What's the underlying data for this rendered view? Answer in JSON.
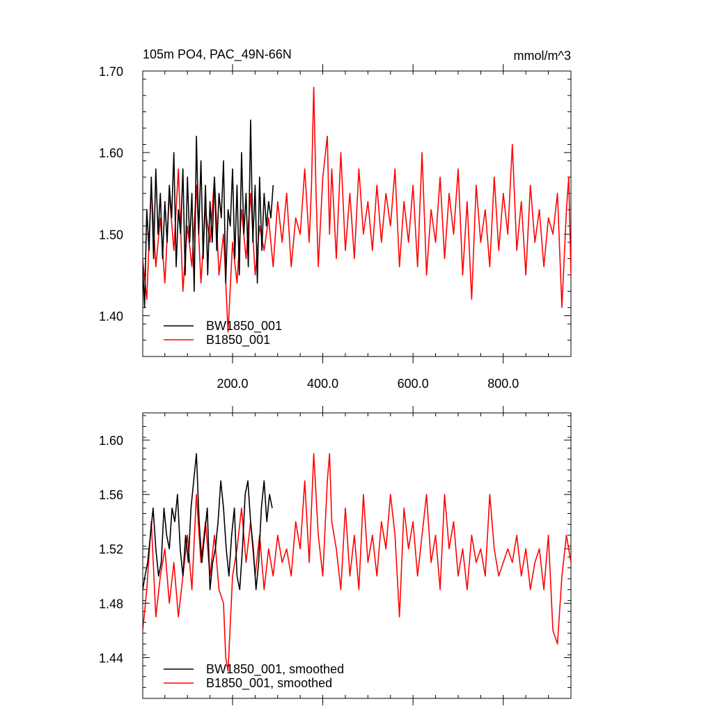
{
  "figure": {
    "title_left": "105m PO4, PAC_49N-66N",
    "title_right": "mmol/m^3"
  },
  "chart_data": [
    {
      "type": "line",
      "title": "105m PO4, PAC_49N-66N",
      "unit_label": "mmol/m^3",
      "xlabel": "",
      "ylabel": "",
      "xlim": [
        1,
        950
      ],
      "ylim": [
        1.35,
        1.7
      ],
      "x_ticks": [
        200,
        400,
        600,
        800
      ],
      "x_tick_labels": [
        "200.0",
        "400.0",
        "600.0",
        "800.0"
      ],
      "y_ticks": [
        1.4,
        1.5,
        1.6,
        1.7
      ],
      "y_tick_labels": [
        "1.40",
        "1.50",
        "1.60",
        "1.70"
      ],
      "grid": false,
      "legend_position": "bottom-left",
      "series": [
        {
          "name": "BW1850_001",
          "color": "#000000",
          "x": [
            1,
            5,
            10,
            15,
            20,
            25,
            30,
            35,
            40,
            45,
            50,
            55,
            60,
            65,
            70,
            75,
            80,
            85,
            90,
            95,
            100,
            105,
            110,
            115,
            120,
            125,
            130,
            135,
            140,
            145,
            150,
            155,
            160,
            165,
            170,
            175,
            180,
            185,
            190,
            195,
            200,
            205,
            210,
            215,
            220,
            225,
            230,
            235,
            240,
            245,
            250,
            255,
            260,
            265,
            270,
            275,
            280,
            285,
            290
          ],
          "values": [
            1.46,
            1.41,
            1.53,
            1.48,
            1.57,
            1.47,
            1.58,
            1.5,
            1.55,
            1.47,
            1.54,
            1.49,
            1.56,
            1.52,
            1.6,
            1.46,
            1.53,
            1.5,
            1.58,
            1.45,
            1.57,
            1.49,
            1.55,
            1.43,
            1.62,
            1.5,
            1.59,
            1.47,
            1.56,
            1.45,
            1.54,
            1.49,
            1.57,
            1.48,
            1.55,
            1.52,
            1.59,
            1.44,
            1.53,
            1.51,
            1.58,
            1.47,
            1.56,
            1.45,
            1.6,
            1.5,
            1.55,
            1.46,
            1.64,
            1.49,
            1.56,
            1.44,
            1.57,
            1.48,
            1.55,
            1.51,
            1.54,
            1.52,
            1.56
          ]
        },
        {
          "name": "B1850_001",
          "color": "#ff0000",
          "x": [
            1,
            10,
            20,
            30,
            40,
            50,
            60,
            70,
            80,
            90,
            100,
            110,
            120,
            130,
            140,
            150,
            160,
            170,
            180,
            190,
            200,
            210,
            220,
            230,
            240,
            250,
            260,
            270,
            280,
            290,
            300,
            310,
            320,
            330,
            340,
            350,
            360,
            370,
            375,
            380,
            385,
            390,
            400,
            410,
            415,
            420,
            430,
            440,
            450,
            460,
            470,
            480,
            490,
            500,
            510,
            520,
            530,
            540,
            550,
            560,
            570,
            580,
            590,
            600,
            610,
            620,
            630,
            640,
            650,
            660,
            670,
            680,
            690,
            700,
            710,
            720,
            730,
            740,
            750,
            760,
            770,
            780,
            790,
            800,
            810,
            820,
            830,
            840,
            850,
            860,
            870,
            880,
            890,
            900,
            910,
            920,
            930,
            940,
            945,
            950
          ],
          "values": [
            1.47,
            1.42,
            1.56,
            1.46,
            1.52,
            1.44,
            1.55,
            1.48,
            1.58,
            1.43,
            1.51,
            1.46,
            1.56,
            1.44,
            1.53,
            1.49,
            1.57,
            1.45,
            1.5,
            1.38,
            1.49,
            1.44,
            1.53,
            1.47,
            1.55,
            1.45,
            1.51,
            1.48,
            1.52,
            1.46,
            1.54,
            1.49,
            1.55,
            1.46,
            1.52,
            1.5,
            1.58,
            1.49,
            1.56,
            1.68,
            1.55,
            1.46,
            1.57,
            1.62,
            1.5,
            1.58,
            1.47,
            1.6,
            1.48,
            1.55,
            1.47,
            1.58,
            1.5,
            1.54,
            1.48,
            1.56,
            1.49,
            1.55,
            1.51,
            1.58,
            1.46,
            1.54,
            1.49,
            1.56,
            1.46,
            1.6,
            1.45,
            1.53,
            1.49,
            1.57,
            1.47,
            1.55,
            1.5,
            1.58,
            1.45,
            1.54,
            1.42,
            1.56,
            1.49,
            1.53,
            1.46,
            1.57,
            1.48,
            1.55,
            1.5,
            1.61,
            1.48,
            1.54,
            1.45,
            1.56,
            1.49,
            1.53,
            1.46,
            1.52,
            1.5,
            1.55,
            1.41,
            1.53,
            1.57,
            1.45
          ]
        }
      ]
    },
    {
      "type": "line",
      "title": "",
      "xlabel": "",
      "ylabel": "",
      "xlim": [
        1,
        950
      ],
      "ylim": [
        1.41,
        1.62
      ],
      "x_ticks": [
        200,
        400,
        600,
        800
      ],
      "x_tick_labels": [],
      "y_ticks": [
        1.44,
        1.48,
        1.52,
        1.56,
        1.6
      ],
      "y_tick_labels": [
        "1.44",
        "1.48",
        "1.52",
        "1.56",
        "1.60"
      ],
      "grid": false,
      "legend_position": "bottom-left",
      "series": [
        {
          "name": "BW1850_001, smoothed",
          "color": "#000000",
          "x": [
            1,
            6,
            12,
            18,
            24,
            30,
            36,
            42,
            48,
            54,
            60,
            66,
            72,
            78,
            84,
            90,
            96,
            102,
            108,
            114,
            120,
            126,
            132,
            138,
            144,
            150,
            156,
            162,
            168,
            174,
            180,
            186,
            192,
            198,
            204,
            210,
            216,
            222,
            228,
            234,
            240,
            246,
            252,
            258,
            264,
            270,
            276,
            282,
            288
          ],
          "values": [
            1.49,
            1.5,
            1.51,
            1.53,
            1.55,
            1.52,
            1.5,
            1.51,
            1.55,
            1.53,
            1.52,
            1.55,
            1.54,
            1.56,
            1.52,
            1.5,
            1.53,
            1.51,
            1.55,
            1.57,
            1.59,
            1.54,
            1.51,
            1.53,
            1.55,
            1.49,
            1.51,
            1.52,
            1.54,
            1.57,
            1.55,
            1.52,
            1.5,
            1.53,
            1.55,
            1.5,
            1.49,
            1.52,
            1.56,
            1.57,
            1.54,
            1.52,
            1.49,
            1.51,
            1.55,
            1.57,
            1.54,
            1.56,
            1.55
          ]
        },
        {
          "name": "B1850_001, smoothed",
          "color": "#ff0000",
          "x": [
            1,
            10,
            20,
            30,
            40,
            50,
            60,
            70,
            80,
            90,
            100,
            110,
            120,
            130,
            140,
            150,
            160,
            170,
            180,
            185,
            190,
            200,
            210,
            220,
            230,
            240,
            250,
            260,
            270,
            280,
            290,
            300,
            310,
            320,
            330,
            340,
            350,
            360,
            370,
            380,
            390,
            400,
            410,
            415,
            420,
            430,
            440,
            450,
            460,
            470,
            480,
            490,
            500,
            510,
            520,
            530,
            540,
            550,
            560,
            570,
            580,
            590,
            600,
            610,
            620,
            630,
            640,
            650,
            660,
            670,
            680,
            690,
            700,
            710,
            720,
            730,
            740,
            750,
            760,
            770,
            780,
            790,
            800,
            810,
            820,
            830,
            840,
            850,
            860,
            870,
            880,
            890,
            900,
            910,
            920,
            930,
            940,
            950
          ],
          "values": [
            1.46,
            1.49,
            1.54,
            1.47,
            1.5,
            1.52,
            1.48,
            1.51,
            1.47,
            1.5,
            1.53,
            1.49,
            1.56,
            1.51,
            1.54,
            1.5,
            1.53,
            1.49,
            1.48,
            1.44,
            1.43,
            1.5,
            1.52,
            1.55,
            1.51,
            1.54,
            1.5,
            1.53,
            1.49,
            1.52,
            1.5,
            1.53,
            1.51,
            1.52,
            1.5,
            1.54,
            1.52,
            1.57,
            1.51,
            1.59,
            1.53,
            1.5,
            1.57,
            1.59,
            1.54,
            1.52,
            1.49,
            1.55,
            1.5,
            1.53,
            1.49,
            1.56,
            1.51,
            1.53,
            1.5,
            1.54,
            1.52,
            1.56,
            1.53,
            1.47,
            1.55,
            1.52,
            1.54,
            1.5,
            1.53,
            1.56,
            1.51,
            1.53,
            1.49,
            1.56,
            1.52,
            1.54,
            1.5,
            1.52,
            1.49,
            1.53,
            1.51,
            1.52,
            1.5,
            1.56,
            1.52,
            1.5,
            1.51,
            1.52,
            1.51,
            1.53,
            1.5,
            1.52,
            1.49,
            1.51,
            1.52,
            1.49,
            1.53,
            1.46,
            1.45,
            1.5,
            1.53,
            1.51
          ]
        }
      ]
    }
  ]
}
